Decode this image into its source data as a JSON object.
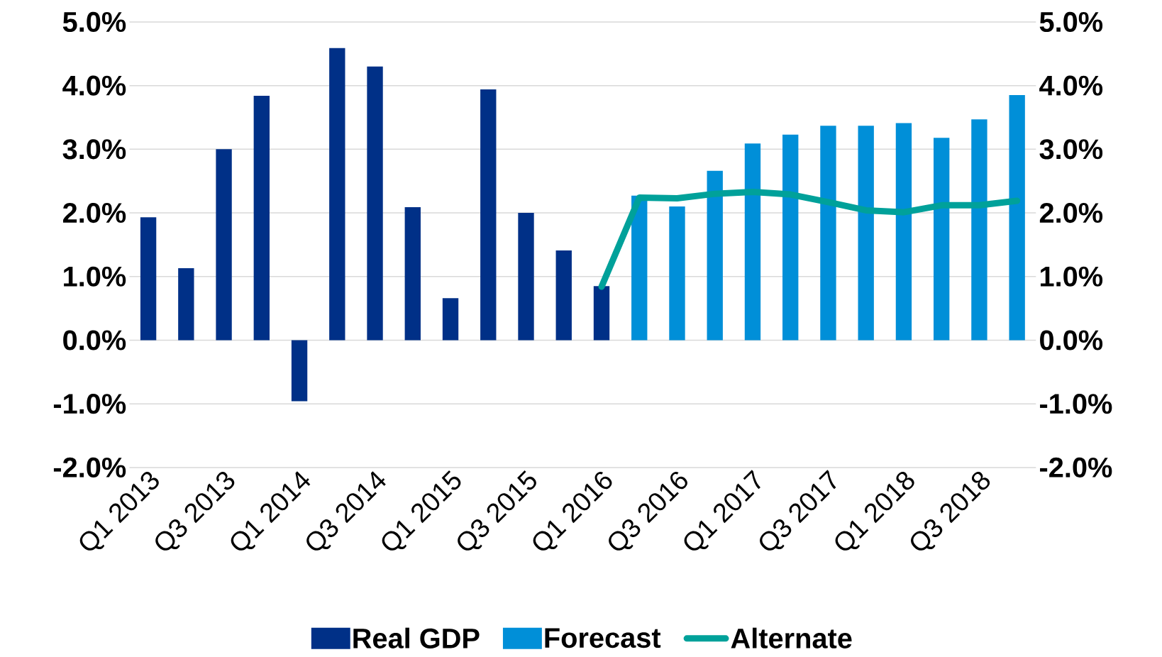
{
  "chart_data": {
    "type": "bar",
    "categories": [
      "Q1 2013",
      null,
      "Q3 2013",
      null,
      "Q1 2014",
      null,
      "Q3 2014",
      null,
      "Q1 2015",
      null,
      "Q3 2015",
      null,
      "Q1 2016",
      null,
      "Q3 2016",
      null,
      "Q1 2017",
      null,
      "Q3 2017",
      null,
      "Q1 2018",
      null,
      "Q3 2018",
      null
    ],
    "series": [
      {
        "name": "Real GDP",
        "color": "#003087",
        "values": [
          1.93,
          1.13,
          3.0,
          3.84,
          -0.96,
          4.59,
          4.3,
          2.09,
          0.66,
          3.94,
          2.0,
          1.41,
          0.85,
          null,
          null,
          null,
          null,
          null,
          null,
          null,
          null,
          null,
          null,
          null
        ]
      },
      {
        "name": "Forecast",
        "color": "#008fd8",
        "values": [
          null,
          null,
          null,
          null,
          null,
          null,
          null,
          null,
          null,
          null,
          null,
          null,
          null,
          2.27,
          2.1,
          2.66,
          3.09,
          3.23,
          3.37,
          3.37,
          3.41,
          3.18,
          3.47,
          3.85
        ]
      },
      {
        "name": "Alternate",
        "type": "line",
        "axis": "y2",
        "color": "#00a19a",
        "values": [
          null,
          null,
          null,
          null,
          null,
          null,
          null,
          null,
          null,
          null,
          null,
          null,
          0.84,
          2.24,
          2.23,
          2.3,
          2.33,
          2.29,
          2.17,
          2.04,
          2.01,
          2.12,
          2.12,
          2.19
        ]
      }
    ],
    "ylim": [
      -2,
      5
    ],
    "yticks": [
      {
        "value": -2,
        "label": "-2.0%"
      },
      {
        "value": -1,
        "label": "-1.0%"
      },
      {
        "value": 0,
        "label": "0.0%"
      },
      {
        "value": 1,
        "label": "1.0%"
      },
      {
        "value": 2,
        "label": "2.0%"
      },
      {
        "value": 3,
        "label": "3.0%"
      },
      {
        "value": 4,
        "label": "4.0%"
      },
      {
        "value": 5,
        "label": "5.0%"
      }
    ],
    "y2lim": [
      -2,
      5
    ],
    "y2ticks": [
      {
        "value": -2,
        "label": "-2.0%"
      },
      {
        "value": -1,
        "label": "-1.0%"
      },
      {
        "value": 0,
        "label": "0.0%"
      },
      {
        "value": 1,
        "label": "1.0%"
      },
      {
        "value": 2,
        "label": "2.0%"
      },
      {
        "value": 3,
        "label": "3.0%"
      },
      {
        "value": 4,
        "label": "4.0%"
      },
      {
        "value": 5,
        "label": "5.0%"
      }
    ],
    "grid": "y",
    "legend": "bottom"
  }
}
